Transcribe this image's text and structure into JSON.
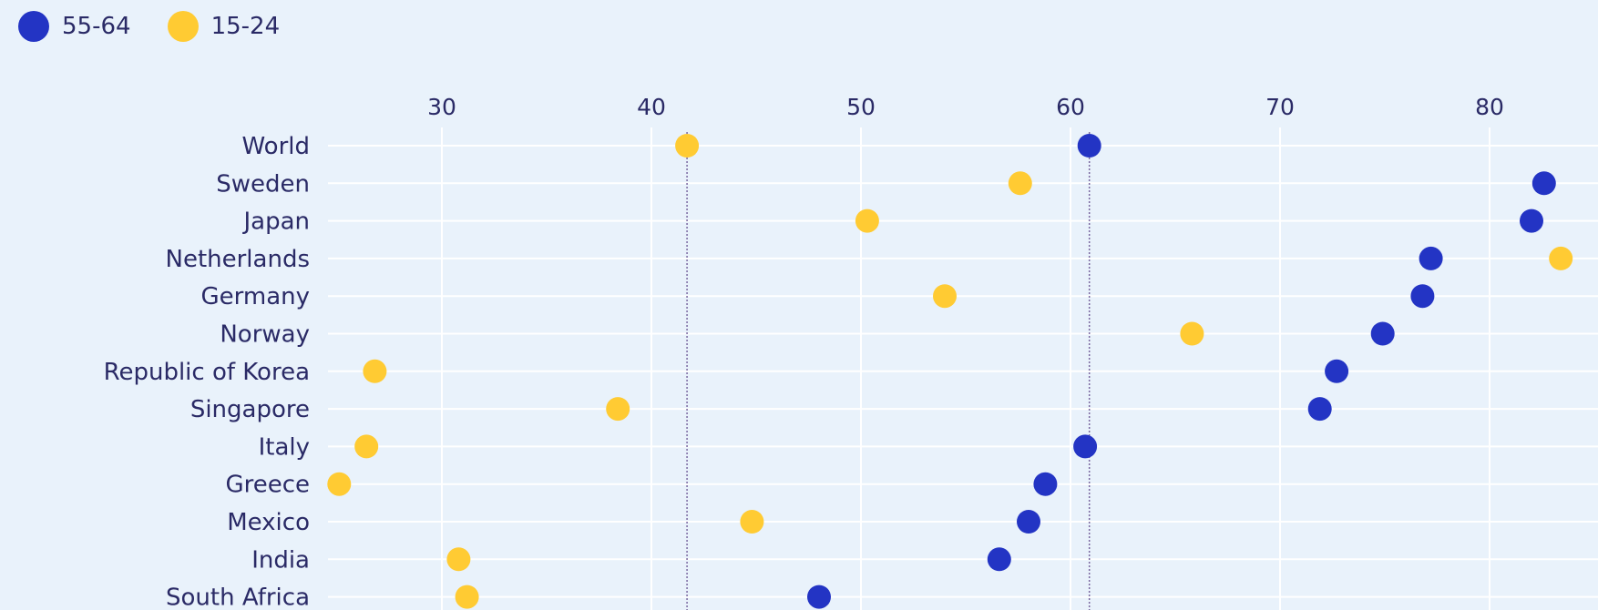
{
  "chart_data": {
    "type": "scatter",
    "xlim": [
      24,
      86
    ],
    "xticks": [
      30,
      40,
      50,
      60,
      70,
      80
    ],
    "grid": true,
    "legend_position": "top-left",
    "categories": [
      "World",
      "Sweden",
      "Japan",
      "Netherlands",
      "Germany",
      "Norway",
      "Republic of Korea",
      "Singapore",
      "Italy",
      "Greece",
      "Mexico",
      "India",
      "South Africa"
    ],
    "series": [
      {
        "name": "55-64",
        "color": "#2334c4",
        "values": [
          60.9,
          82.6,
          82.0,
          77.2,
          76.8,
          74.9,
          72.7,
          71.9,
          60.7,
          58.8,
          58.0,
          56.6,
          48.0
        ]
      },
      {
        "name": "15-24",
        "color": "#ffcb33",
        "values": [
          41.7,
          57.6,
          50.3,
          83.4,
          54.0,
          65.8,
          26.8,
          38.4,
          26.4,
          25.1,
          44.8,
          30.8,
          31.2
        ]
      }
    ],
    "reference_lines": [
      41.7,
      60.9
    ]
  }
}
